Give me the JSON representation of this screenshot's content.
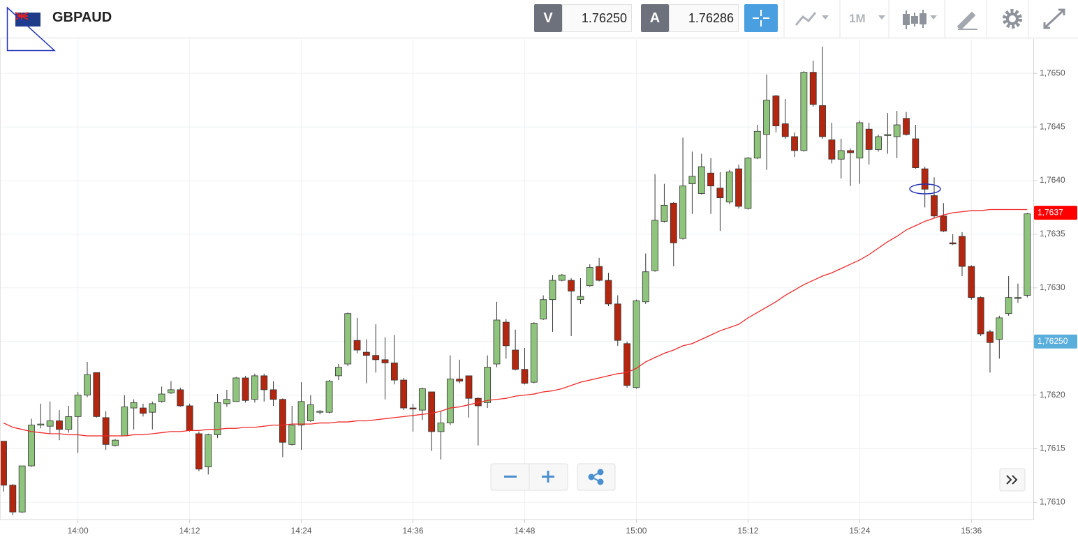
{
  "toolbar": {
    "symbol": "GBPAUD",
    "bid_label": "V",
    "bid": "1.76250",
    "ask_label": "A",
    "ask": "1.76286",
    "timeframe": "1M"
  },
  "chart_data": {
    "type": "candlestick",
    "categories": [
      null,
      null,
      null,
      null,
      null,
      null,
      null,
      null,
      "14:00",
      null,
      null,
      null,
      null,
      null,
      null,
      null,
      null,
      null,
      null,
      null,
      "14:12",
      null,
      null,
      null,
      null,
      null,
      null,
      null,
      null,
      null,
      null,
      null,
      "14:24",
      null,
      null,
      null,
      null,
      null,
      null,
      null,
      null,
      null,
      null,
      null,
      "14:36",
      null,
      null,
      null,
      null,
      null,
      null,
      null,
      null,
      null,
      null,
      null,
      "14:48",
      null,
      null,
      null,
      null,
      null,
      null,
      null,
      null,
      null,
      null,
      null,
      "15:00",
      null,
      null,
      null,
      null,
      null,
      null,
      null,
      null,
      null,
      null,
      null,
      "15:12",
      null,
      null,
      null,
      null,
      null,
      null,
      null,
      null,
      null,
      null,
      null,
      "15:24",
      null,
      null,
      null,
      null,
      null,
      null,
      null,
      null,
      null,
      null,
      null,
      "15:36",
      null,
      null,
      null,
      null,
      null,
      null
    ],
    "open": [
      1.76157,
      1.76116,
      1.76091,
      1.76134,
      1.76172,
      1.76171,
      1.76176,
      1.76168,
      1.7618,
      1.762,
      1.76221,
      1.76179,
      1.76153,
      1.76162,
      1.76188,
      1.76188,
      1.76184,
      1.76194,
      1.76202,
      1.76205,
      1.7619,
      1.76164,
      1.76133,
      1.76163,
      1.76192,
      1.76194,
      1.76216,
      1.76196,
      1.76218,
      1.76205,
      1.76196,
      1.76154,
      1.76172,
      1.76176,
      1.76184,
      1.76184,
      1.76218,
      1.76229,
      1.76251,
      1.7624,
      1.76237,
      1.76233,
      1.7623,
      1.76214,
      1.76188,
      1.76186,
      1.76203,
      1.76166,
      1.76174,
      1.76215,
      1.76218,
      1.76197,
      1.76193,
      1.76229,
      1.76268,
      1.76242,
      1.76224,
      1.76212,
      1.76271,
      1.76289,
      1.76307,
      1.76307,
      1.76289,
      1.76302,
      1.7632,
      1.76307,
      1.76285,
      1.76248,
      1.76207,
      1.76287,
      1.76316,
      1.76362,
      1.76379,
      1.76346,
      1.76397,
      1.76388,
      1.76407,
      1.76393,
      1.7638,
      1.76411,
      1.76374,
      1.76421,
      1.76443,
      1.76479,
      1.76453,
      1.76441,
      1.76428,
      1.76501,
      1.7647,
      1.76438,
      1.7642,
      1.76428,
      1.76421,
      1.76448,
      1.76429,
      1.76442,
      1.76441,
      1.76458,
      1.76439,
      1.76411,
      1.76386,
      1.76367,
      1.76342,
      1.76348,
      1.7632,
      1.76291,
      1.76259,
      1.76252,
      1.76276,
      1.7629,
      1.76293
    ],
    "high": [
      1.76157,
      1.76117,
      1.76134,
      1.76178,
      1.76192,
      1.76194,
      1.76186,
      1.7619,
      1.76203,
      1.76231,
      1.76221,
      1.76185,
      1.76159,
      1.762,
      1.76196,
      1.76192,
      1.76194,
      1.76208,
      1.76213,
      1.76207,
      1.76192,
      1.76166,
      1.76164,
      1.76201,
      1.76205,
      1.76217,
      1.76218,
      1.7622,
      1.7622,
      1.76213,
      1.76197,
      1.7619,
      1.76212,
      1.762,
      1.76186,
      1.76214,
      1.76229,
      1.76277,
      1.76272,
      1.76252,
      1.76266,
      1.76254,
      1.76256,
      1.76216,
      1.76192,
      1.76207,
      1.76203,
      1.76185,
      1.76237,
      1.76233,
      1.76218,
      1.76198,
      1.76237,
      1.76287,
      1.76271,
      1.76261,
      1.76244,
      1.76268,
      1.76293,
      1.76312,
      1.76313,
      1.76309,
      1.76309,
      1.76322,
      1.76328,
      1.76314,
      1.76293,
      1.7625,
      1.76289,
      1.76332,
      1.76406,
      1.76397,
      1.7638,
      1.7644,
      1.76427,
      1.76425,
      1.76421,
      1.76408,
      1.7641,
      1.76415,
      1.76422,
      1.76452,
      1.76499,
      1.7648,
      1.76476,
      1.76445,
      1.76502,
      1.76512,
      1.76525,
      1.76454,
      1.76439,
      1.7643,
      1.76456,
      1.76454,
      1.76443,
      1.76463,
      1.76465,
      1.76464,
      1.76452,
      1.76413,
      1.76403,
      1.76379,
      1.7635,
      1.76352,
      1.76321,
      1.76292,
      1.76261,
      1.76274,
      1.76311,
      1.76304,
      1.7637
    ],
    "low": [
      1.7611,
      1.76088,
      1.7609,
      1.76133,
      1.76169,
      1.76164,
      1.76158,
      1.76165,
      1.76146,
      1.76198,
      1.76179,
      1.76149,
      1.76152,
      1.76162,
      1.76168,
      1.7618,
      1.76168,
      1.76193,
      1.76201,
      1.76189,
      1.76166,
      1.76129,
      1.76126,
      1.7616,
      1.76189,
      1.76194,
      1.76193,
      1.76193,
      1.76194,
      1.7619,
      1.76142,
      1.76153,
      1.76149,
      1.76175,
      1.76182,
      1.76183,
      1.76214,
      1.76227,
      1.76239,
      1.76211,
      1.76221,
      1.76196,
      1.7621,
      1.76186,
      1.76166,
      1.76177,
      1.76148,
      1.7614,
      1.76172,
      1.76211,
      1.76179,
      1.76153,
      1.76188,
      1.76226,
      1.76234,
      1.76223,
      1.7621,
      1.76211,
      1.7627,
      1.76259,
      1.76306,
      1.76255,
      1.76285,
      1.76301,
      1.76306,
      1.76283,
      1.76246,
      1.76207,
      1.76206,
      1.76285,
      1.76315,
      1.76361,
      1.7632,
      1.76345,
      1.76369,
      1.76387,
      1.76369,
      1.76353,
      1.76378,
      1.76374,
      1.76373,
      1.7642,
      1.7641,
      1.76445,
      1.76439,
      1.76422,
      1.76427,
      1.76469,
      1.76439,
      1.76416,
      1.76402,
      1.76395,
      1.76397,
      1.76415,
      1.76427,
      1.76425,
      1.76421,
      1.76442,
      1.76411,
      1.76375,
      1.76365,
      1.76352,
      1.7634,
      1.76311,
      1.76289,
      1.76255,
      1.76221,
      1.76234,
      1.76274,
      1.76286,
      1.76291
    ],
    "close": [
      1.76116,
      1.76091,
      1.76134,
      1.76172,
      1.76173,
      1.76176,
      1.76168,
      1.7618,
      1.762,
      1.76219,
      1.7618,
      1.76154,
      1.76158,
      1.76189,
      1.76193,
      1.76183,
      1.76192,
      1.76201,
      1.76205,
      1.7619,
      1.76167,
      1.76131,
      1.76163,
      1.76193,
      1.76196,
      1.76216,
      1.76195,
      1.76218,
      1.76205,
      1.76196,
      1.76156,
      1.76172,
      1.76194,
      1.76191,
      1.76185,
      1.76213,
      1.76226,
      1.76276,
      1.76242,
      1.76237,
      1.76233,
      1.7623,
      1.76214,
      1.76188,
      1.76187,
      1.76206,
      1.76166,
      1.76174,
      1.76215,
      1.76213,
      1.76197,
      1.7619,
      1.76226,
      1.7627,
      1.76246,
      1.76224,
      1.76211,
      1.76267,
      1.76289,
      1.76307,
      1.76312,
      1.76297,
      1.76292,
      1.76319,
      1.76307,
      1.76285,
      1.76251,
      1.76209,
      1.76288,
      1.76315,
      1.76363,
      1.76377,
      1.76342,
      1.76395,
      1.76404,
      1.76413,
      1.76395,
      1.76384,
      1.76408,
      1.76376,
      1.76421,
      1.76446,
      1.76475,
      1.76451,
      1.76441,
      1.76428,
      1.76501,
      1.76471,
      1.76441,
      1.7642,
      1.76428,
      1.76426,
      1.76454,
      1.76429,
      1.76441,
      1.76443,
      1.76452,
      1.76443,
      1.76412,
      1.76392,
      1.76367,
      1.76353,
      1.76341,
      1.7632,
      1.76291,
      1.76257,
      1.76249,
      1.76272,
      1.76291,
      1.76291,
      1.76369
    ],
    "up_color": "#8fc47c",
    "down_color": "#b3260f",
    "moving_average": {
      "color": "#ee2a2a",
      "values": [
        1.76174,
        1.7617,
        1.76168,
        1.76166,
        1.76165,
        1.76164,
        1.76164,
        1.76163,
        1.76163,
        1.76162,
        1.76162,
        1.76162,
        1.76162,
        1.76162,
        1.76163,
        1.76163,
        1.76164,
        1.76165,
        1.76166,
        1.76166,
        1.76167,
        1.76167,
        1.76168,
        1.76168,
        1.76169,
        1.76169,
        1.7617,
        1.7617,
        1.76171,
        1.76172,
        1.76172,
        1.76173,
        1.76173,
        1.76173,
        1.76174,
        1.76174,
        1.76175,
        1.76175,
        1.76176,
        1.76176,
        1.76177,
        1.76178,
        1.76179,
        1.7618,
        1.76181,
        1.76182,
        1.76183,
        1.76185,
        1.76188,
        1.76189,
        1.76191,
        1.76193,
        1.76195,
        1.76196,
        1.76197,
        1.76199,
        1.762,
        1.76201,
        1.76203,
        1.76204,
        1.76206,
        1.76209,
        1.76212,
        1.76214,
        1.76216,
        1.76218,
        1.7622,
        1.76221,
        1.76225,
        1.76231,
        1.76235,
        1.76239,
        1.76242,
        1.76246,
        1.76248,
        1.76252,
        1.76256,
        1.7626,
        1.76263,
        1.76266,
        1.76272,
        1.76277,
        1.76282,
        1.76287,
        1.76293,
        1.76298,
        1.76303,
        1.76307,
        1.76311,
        1.76314,
        1.76318,
        1.76322,
        1.76326,
        1.76331,
        1.76337,
        1.76343,
        1.76348,
        1.76354,
        1.76358,
        1.76362,
        1.76365,
        1.76368,
        1.7637,
        1.76371,
        1.76372,
        1.76372,
        1.76373,
        1.76373,
        1.76373,
        1.76373,
        1.76373
      ]
    },
    "ylim": [
      1.76084,
      1.76532
    ],
    "yticks": [
      {
        "value": 1.761,
        "label": "1,7610"
      },
      {
        "value": 1.7615,
        "label": "1,7615"
      },
      {
        "value": 1.762,
        "label": "1,7620"
      },
      {
        "value": 1.7625,
        "label": "1,7625"
      },
      {
        "value": 1.763,
        "label": "1,7630"
      },
      {
        "value": 1.7635,
        "label": "1,7635"
      },
      {
        "value": 1.764,
        "label": "1,7640"
      },
      {
        "value": 1.7645,
        "label": "1,7645"
      },
      {
        "value": 1.765,
        "label": "1,7650"
      }
    ],
    "grid": true,
    "price_labels": [
      {
        "value": 1.7637,
        "label": "1,7637",
        "color": "#ff0000"
      },
      {
        "value": 1.7625,
        "label": "1,76250",
        "color": "#5aaedc"
      }
    ]
  }
}
